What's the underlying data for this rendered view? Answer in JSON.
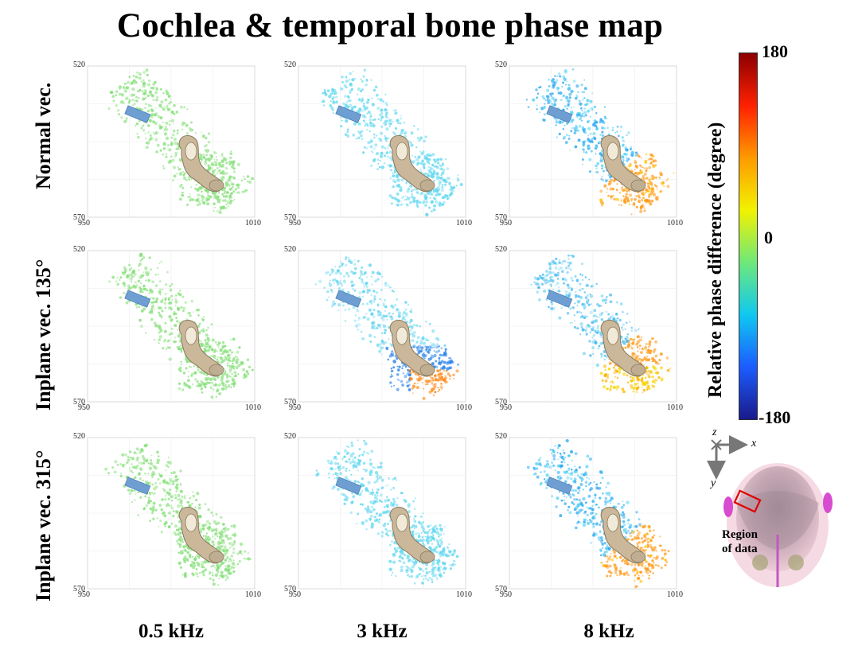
{
  "title": "Cochlea & temporal bone phase map",
  "rows": [
    {
      "label": "Normal vec."
    },
    {
      "label": "Inplane vec. 135°"
    },
    {
      "label": "Inplane vec. 315°"
    }
  ],
  "columns": [
    {
      "label": "0.5 kHz"
    },
    {
      "label": "3 kHz"
    },
    {
      "label": "8 kHz"
    }
  ],
  "axis_ticks": {
    "y_top": "520",
    "y_bottom": "570",
    "x_left": "950",
    "x_right": "1010"
  },
  "panel_colors": [
    [
      "#86e07a",
      "#63d8f0",
      "split-blue-orange"
    ],
    [
      "#86e07a",
      "split-cyan-orange-small",
      "split-cyan-orange-yellow"
    ],
    [
      "#86e07a",
      "#63d8f0",
      "split-blue-orange"
    ]
  ],
  "colorbar": {
    "max": "180",
    "mid": "0",
    "min": "-180",
    "title": "Relative phase difference (degree)",
    "colors": [
      "#8b0000",
      "#ff2000",
      "#ff9a00",
      "#f2f200",
      "#6ee87a",
      "#10c8f0",
      "#1c5cff",
      "#1a1a8a"
    ]
  },
  "inset": {
    "axis_x": "x",
    "axis_y": "y",
    "axis_z": "z",
    "region_label_1": "Region",
    "region_label_2": "of data"
  }
}
